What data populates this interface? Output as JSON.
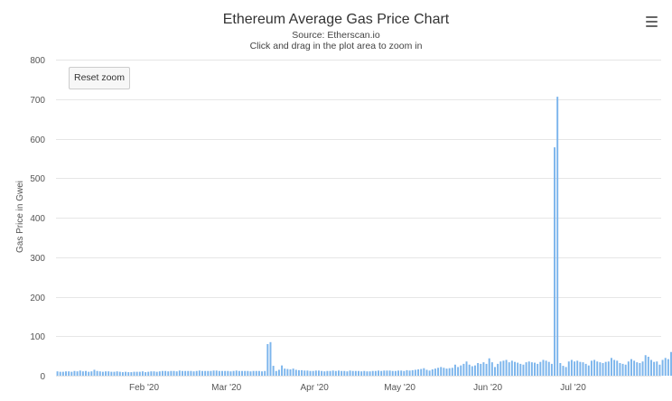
{
  "chart": {
    "title": "Ethereum Average Gas Price Chart",
    "subtitle_source": "Source: Etherscan.io",
    "subtitle_hint": "Click and drag in the plot area to zoom in",
    "reset_zoom_label": "Reset zoom",
    "menu_icon": "hamburger-menu-icon",
    "bar_color": "#7cb5ec"
  },
  "chart_data": {
    "type": "bar",
    "title": "Ethereum Average Gas Price Chart",
    "ylabel": "Gas Price in Gwei",
    "xlabel": "",
    "ylim": [
      0,
      800
    ],
    "yticks": [
      0,
      100,
      200,
      300,
      400,
      500,
      600,
      700,
      800
    ],
    "xlim": [
      "2020-01-01",
      "2020-07-31"
    ],
    "xticks": [
      {
        "label": "Feb '20",
        "date": "2020-02-01"
      },
      {
        "label": "Mar '20",
        "date": "2020-03-01"
      },
      {
        "label": "Apr '20",
        "date": "2020-04-01"
      },
      {
        "label": "May '20",
        "date": "2020-05-01"
      },
      {
        "label": "Jun '20",
        "date": "2020-06-01"
      },
      {
        "label": "Jul '20",
        "date": "2020-07-01"
      }
    ],
    "grid": true,
    "legend": false,
    "series": [
      {
        "x_start": "2020-01-01",
        "x_step": "1 day",
        "values": [
          11,
          10,
          10,
          11,
          11,
          10,
          12,
          11,
          13,
          11,
          12,
          10,
          11,
          15,
          12,
          11,
          10,
          11,
          11,
          10,
          10,
          11,
          10,
          9,
          10,
          9,
          9,
          10,
          10,
          10,
          11,
          9,
          10,
          11,
          11,
          10,
          11,
          12,
          12,
          11,
          12,
          12,
          11,
          13,
          12,
          12,
          12,
          12,
          11,
          12,
          13,
          12,
          12,
          12,
          12,
          13,
          13,
          12,
          12,
          12,
          12,
          11,
          12,
          13,
          12,
          12,
          12,
          12,
          11,
          12,
          12,
          12,
          11,
          12,
          80,
          85,
          25,
          12,
          15,
          26,
          18,
          17,
          16,
          18,
          15,
          14,
          14,
          13,
          13,
          12,
          12,
          13,
          13,
          12,
          11,
          12,
          12,
          13,
          12,
          13,
          12,
          12,
          11,
          13,
          12,
          12,
          12,
          11,
          12,
          11,
          11,
          12,
          12,
          13,
          12,
          13,
          13,
          13,
          12,
          12,
          13,
          13,
          12,
          14,
          13,
          14,
          15,
          16,
          17,
          19,
          15,
          13,
          16,
          18,
          20,
          22,
          20,
          18,
          19,
          20,
          28,
          22,
          26,
          30,
          36,
          28,
          24,
          26,
          32,
          30,
          34,
          30,
          44,
          34,
          22,
          30,
          36,
          38,
          40,
          34,
          38,
          35,
          33,
          30,
          28,
          34,
          36,
          34,
          33,
          30,
          35,
          40,
          38,
          35,
          30,
          578,
          706,
          32,
          25,
          22,
          36,
          40,
          36,
          38,
          35,
          34,
          30,
          26,
          38,
          40,
          36,
          34,
          32,
          35,
          36,
          45,
          40,
          38,
          32,
          30,
          28,
          36,
          42,
          38,
          34,
          32,
          36,
          52,
          48,
          40,
          35,
          36,
          28,
          40,
          45,
          42,
          60,
          55,
          48,
          54,
          50,
          62,
          70,
          64,
          75,
          72,
          78,
          68,
          95,
          70,
          72,
          68
        ]
      }
    ]
  }
}
